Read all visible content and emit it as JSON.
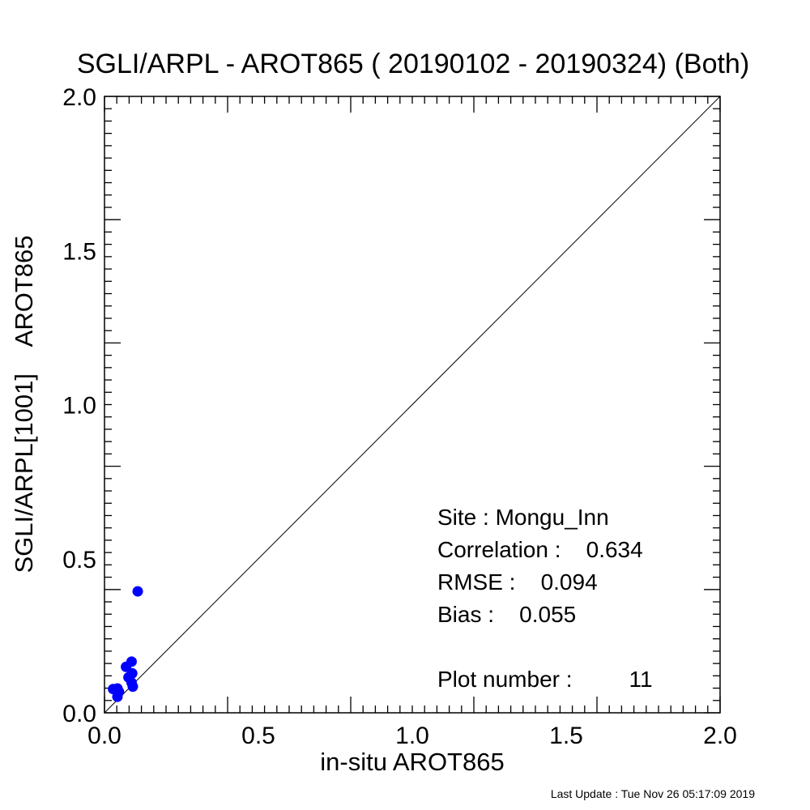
{
  "chart_data": {
    "type": "scatter",
    "title": "SGLI/ARPL - AROT865 ( 20190102 - 20190324) (Both)",
    "xlabel": "in-situ AROT865",
    "ylabel": "SGLI/ARPL[1001]    AROT865",
    "xlim": [
      0.0,
      2.0
    ],
    "ylim": [
      0.0,
      2.0
    ],
    "x_ticks": [
      "0.0",
      "0.5",
      "1.0",
      "1.5",
      "2.0"
    ],
    "y_ticks": [
      "0.0",
      "0.5",
      "1.0",
      "1.5",
      "2.0"
    ],
    "grid": false,
    "reference_line": "1:1",
    "point_color": "#0000ff",
    "points": [
      {
        "x": 0.028,
        "y": 0.077
      },
      {
        "x": 0.042,
        "y": 0.079
      },
      {
        "x": 0.047,
        "y": 0.068
      },
      {
        "x": 0.042,
        "y": 0.052
      },
      {
        "x": 0.07,
        "y": 0.149
      },
      {
        "x": 0.078,
        "y": 0.115
      },
      {
        "x": 0.088,
        "y": 0.166
      },
      {
        "x": 0.09,
        "y": 0.128
      },
      {
        "x": 0.088,
        "y": 0.098
      },
      {
        "x": 0.092,
        "y": 0.085
      },
      {
        "x": 0.108,
        "y": 0.394
      }
    ],
    "stats": {
      "site": "Site : Mongu_Inn",
      "correlation": "Correlation :    0.634",
      "rmse": "RMSE :    0.094",
      "bias": "Bias :    0.055",
      "plot_number": "Plot number :         11"
    }
  },
  "footer": {
    "last_update": "Last Update : Tue Nov 26 05:17:09 2019"
  }
}
